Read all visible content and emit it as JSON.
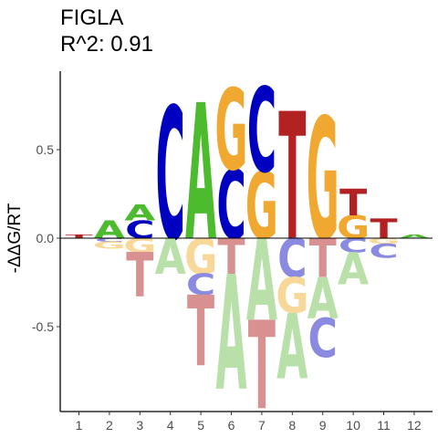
{
  "chart_data": {
    "type": "sequence-logo",
    "title": "FIGLA",
    "subtitle": "R^2: 0.91",
    "xlabel": "",
    "ylabel": "-ΔΔG/RT",
    "ylim": [
      -0.9,
      0.95
    ],
    "yticks": [
      -0.5,
      0.0,
      0.5
    ],
    "ytick_labels": [
      "-0.5",
      "0.0",
      "0.5"
    ],
    "grid": false,
    "legend": "none",
    "positions": [
      "1",
      "2",
      "3",
      "4",
      "5",
      "6",
      "7",
      "8",
      "9",
      "10",
      "11",
      "12"
    ],
    "base_colors": {
      "A": "#4dbb2e",
      "C": "#0000c0",
      "G": "#f0a830",
      "T": "#b22222"
    },
    "negative_colors": {
      "A": "#b8e0a8",
      "C": "#8a8ae0",
      "G": "#f8d898",
      "T": "#d89090"
    },
    "stacks": [
      {
        "position": "1",
        "positive": [
          {
            "base": "T",
            "value": 0.02
          }
        ],
        "negative": []
      },
      {
        "position": "2",
        "positive": [
          {
            "base": "A",
            "value": 0.1
          }
        ],
        "negative": [
          {
            "base": "C",
            "value": 0.02
          },
          {
            "base": "G",
            "value": 0.04
          }
        ]
      },
      {
        "position": "3",
        "positive": [
          {
            "base": "C",
            "value": 0.1
          },
          {
            "base": "A",
            "value": 0.09
          }
        ],
        "negative": [
          {
            "base": "G",
            "value": 0.08
          },
          {
            "base": "T",
            "value": 0.25
          }
        ]
      },
      {
        "position": "4",
        "positive": [
          {
            "base": "C",
            "value": 0.75
          }
        ],
        "negative": [
          {
            "base": "A",
            "value": 0.2
          }
        ]
      },
      {
        "position": "5",
        "positive": [
          {
            "base": "A",
            "value": 0.77
          }
        ],
        "negative": [
          {
            "base": "G",
            "value": 0.2
          },
          {
            "base": "C",
            "value": 0.12
          },
          {
            "base": "T",
            "value": 0.4
          }
        ]
      },
      {
        "position": "6",
        "positive": [
          {
            "base": "C",
            "value": 0.39
          },
          {
            "base": "G",
            "value": 0.46
          }
        ],
        "negative": [
          {
            "base": "T",
            "value": 0.2
          },
          {
            "base": "A",
            "value": 0.65
          }
        ]
      },
      {
        "position": "7",
        "positive": [
          {
            "base": "G",
            "value": 0.38
          },
          {
            "base": "C",
            "value": 0.48
          }
        ],
        "negative": [
          {
            "base": "A",
            "value": 0.46
          },
          {
            "base": "T",
            "value": 0.5
          }
        ]
      },
      {
        "position": "8",
        "positive": [
          {
            "base": "T",
            "value": 0.72
          }
        ],
        "negative": [
          {
            "base": "C",
            "value": 0.22
          },
          {
            "base": "G",
            "value": 0.2
          },
          {
            "base": "A",
            "value": 0.37
          }
        ]
      },
      {
        "position": "9",
        "positive": [
          {
            "base": "G",
            "value": 0.69
          }
        ],
        "negative": [
          {
            "base": "T",
            "value": 0.22
          },
          {
            "base": "A",
            "value": 0.23
          },
          {
            "base": "C",
            "value": 0.22
          }
        ]
      },
      {
        "position": "10",
        "positive": [
          {
            "base": "G",
            "value": 0.13
          },
          {
            "base": "T",
            "value": 0.15
          }
        ],
        "negative": [
          {
            "base": "C",
            "value": 0.08
          },
          {
            "base": "A",
            "value": 0.18
          }
        ]
      },
      {
        "position": "11",
        "positive": [
          {
            "base": "T",
            "value": 0.11
          }
        ],
        "negative": [
          {
            "base": "G",
            "value": 0.03
          },
          {
            "base": "C",
            "value": 0.08
          }
        ]
      },
      {
        "position": "12",
        "positive": [
          {
            "base": "A",
            "value": 0.02
          }
        ],
        "negative": []
      }
    ]
  }
}
